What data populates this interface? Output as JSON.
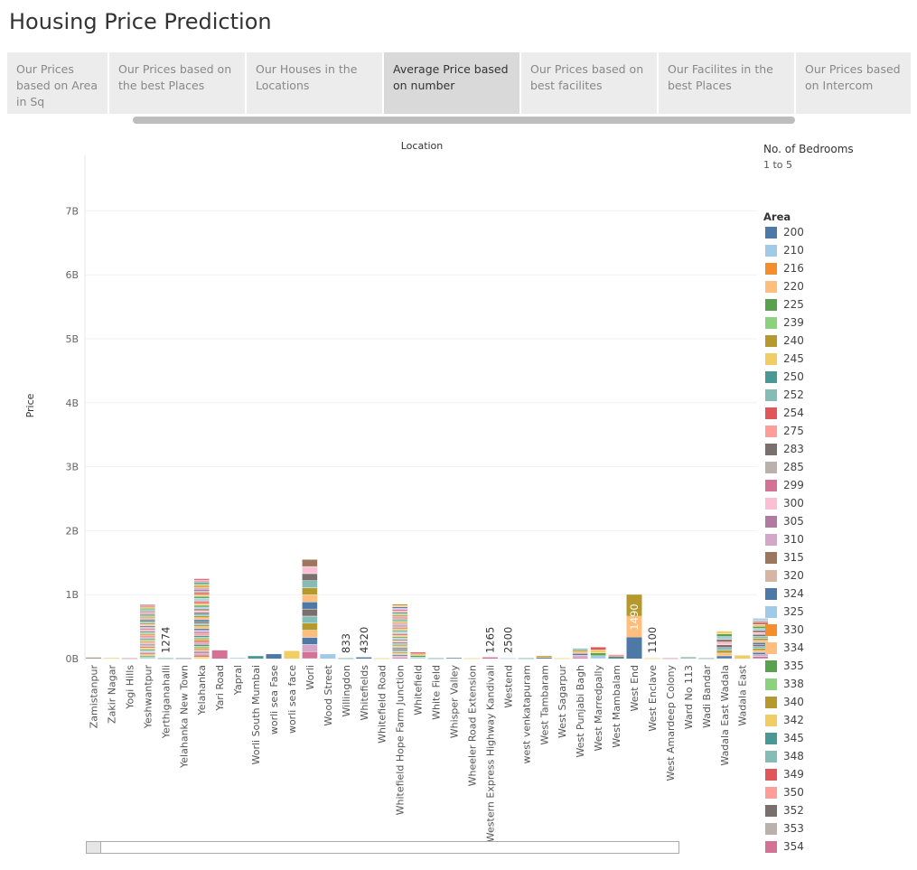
{
  "title": "Housing Price Prediction",
  "tabs": [
    {
      "label": "Our Prices based on Area in Sq",
      "active": false
    },
    {
      "label": "Our Prices based on the best Places",
      "active": false
    },
    {
      "label": "Our Houses in the Locations",
      "active": false
    },
    {
      "label": "Average Price based on number",
      "active": true
    },
    {
      "label": "Our Prices based on best facilites",
      "active": false
    },
    {
      "label": "Our Facilites in the best Places",
      "active": false
    },
    {
      "label": "Our Prices based on Intercom",
      "active": false
    }
  ],
  "legend": {
    "filter_title": "No. of Bedrooms",
    "filter_value": "1 to 5",
    "area_title": "Area",
    "items": [
      {
        "label": "200",
        "color": "#4e79a7"
      },
      {
        "label": "210",
        "color": "#a0cbe8"
      },
      {
        "label": "216",
        "color": "#f28e2b"
      },
      {
        "label": "220",
        "color": "#ffbe7d"
      },
      {
        "label": "225",
        "color": "#59a14f"
      },
      {
        "label": "239",
        "color": "#8cd17d"
      },
      {
        "label": "240",
        "color": "#b6992d"
      },
      {
        "label": "245",
        "color": "#f1ce63"
      },
      {
        "label": "250",
        "color": "#499894"
      },
      {
        "label": "252",
        "color": "#86bcb6"
      },
      {
        "label": "254",
        "color": "#e15759"
      },
      {
        "label": "275",
        "color": "#ff9d9a"
      },
      {
        "label": "283",
        "color": "#79706e"
      },
      {
        "label": "285",
        "color": "#bab0ac"
      },
      {
        "label": "299",
        "color": "#d37295"
      },
      {
        "label": "300",
        "color": "#fabfd2"
      },
      {
        "label": "305",
        "color": "#b07aa1"
      },
      {
        "label": "310",
        "color": "#d4a6c8"
      },
      {
        "label": "315",
        "color": "#9d7660"
      },
      {
        "label": "320",
        "color": "#d7b5a6"
      },
      {
        "label": "324",
        "color": "#4e79a7"
      },
      {
        "label": "325",
        "color": "#a0cbe8"
      },
      {
        "label": "330",
        "color": "#f28e2b"
      },
      {
        "label": "334",
        "color": "#ffbe7d"
      },
      {
        "label": "335",
        "color": "#59a14f"
      },
      {
        "label": "338",
        "color": "#8cd17d"
      },
      {
        "label": "340",
        "color": "#b6992d"
      },
      {
        "label": "342",
        "color": "#f1ce63"
      },
      {
        "label": "345",
        "color": "#499894"
      },
      {
        "label": "348",
        "color": "#86bcb6"
      },
      {
        "label": "349",
        "color": "#e15759"
      },
      {
        "label": "350",
        "color": "#ff9d9a"
      },
      {
        "label": "352",
        "color": "#79706e"
      },
      {
        "label": "353",
        "color": "#bab0ac"
      },
      {
        "label": "354",
        "color": "#d37295"
      }
    ]
  },
  "chart_data": {
    "type": "bar",
    "stacked": true,
    "title": "Location",
    "xlabel": "",
    "ylabel": "Price",
    "ylim": [
      -0.1,
      7.7
    ],
    "yticks": [
      0,
      1,
      2,
      3,
      4,
      5,
      6,
      7
    ],
    "ytick_labels": [
      "0B",
      "1B",
      "2B",
      "3B",
      "4B",
      "5B",
      "6B",
      "7B"
    ],
    "unit": "B",
    "categories": [
      {
        "name": "Zamistanpur",
        "total": 0.02,
        "stack": 2
      },
      {
        "name": "Zakir Nagar",
        "total": 0.01,
        "stack": 1
      },
      {
        "name": "Yogi Hills",
        "total": 0.005,
        "stack": 1
      },
      {
        "name": "Yeshwantpur",
        "total": 0.85,
        "stack": 40
      },
      {
        "name": "Yerthiganahalli",
        "total": 0.005,
        "stack": 1,
        "label": "1274"
      },
      {
        "name": "Yelahanka New Town",
        "total": 0.005,
        "stack": 1
      },
      {
        "name": "Yelahanka",
        "total": 1.25,
        "stack": 45
      },
      {
        "name": "Yari Road",
        "total": 0.13,
        "stack": 1
      },
      {
        "name": "Yapral",
        "total": 0.01,
        "stack": 1
      },
      {
        "name": "Worli South Mumbai",
        "total": 0.04,
        "stack": 1
      },
      {
        "name": "worli sea Fase",
        "total": 0.07,
        "stack": 1
      },
      {
        "name": "worli sea face",
        "total": 0.12,
        "stack": 1
      },
      {
        "name": "Worli",
        "total": 1.55,
        "stack": 14
      },
      {
        "name": "Wood Street",
        "total": 0.07,
        "stack": 1
      },
      {
        "name": "Willingdon",
        "total": 0.005,
        "stack": 1,
        "label": "833"
      },
      {
        "name": "Whitefields",
        "total": 0.02,
        "stack": 1,
        "label": "4320"
      },
      {
        "name": "Whitefield Road",
        "total": 0.005,
        "stack": 1
      },
      {
        "name": "Whitefield Hope Farm Junction",
        "total": 0.85,
        "stack": 40
      },
      {
        "name": "Whitefield",
        "total": 0.1,
        "stack": 4
      },
      {
        "name": "White Field",
        "total": 0.005,
        "stack": 1
      },
      {
        "name": "Whisper Valley",
        "total": 0.01,
        "stack": 1
      },
      {
        "name": "Wheeler Road Extension",
        "total": 0.005,
        "stack": 1
      },
      {
        "name": "Western Express Highway Kandivali",
        "total": 0.02,
        "stack": 1,
        "label": "1265"
      },
      {
        "name": "Westend",
        "total": 0.005,
        "stack": 1,
        "label": "2500"
      },
      {
        "name": "west venkatapuram",
        "total": 0.005,
        "stack": 1
      },
      {
        "name": "West Tambaram",
        "total": 0.04,
        "stack": 3
      },
      {
        "name": "West Sagarpur",
        "total": 0.005,
        "stack": 1
      },
      {
        "name": "West Punjabi Bagh",
        "total": 0.16,
        "stack": 6
      },
      {
        "name": "West Marredpally",
        "total": 0.18,
        "stack": 4
      },
      {
        "name": "West Mambalam",
        "total": 0.06,
        "stack": 2
      },
      {
        "name": "West End",
        "total": 1.0,
        "stack": 3,
        "label": "1490"
      },
      {
        "name": "West Enclave",
        "total": 0.005,
        "stack": 1,
        "label": "1100"
      },
      {
        "name": "West Amardeep Colony",
        "total": 0.005,
        "stack": 1
      },
      {
        "name": "Ward No 113",
        "total": 0.02,
        "stack": 2
      },
      {
        "name": "Wadi Bandar",
        "total": 0.005,
        "stack": 1
      },
      {
        "name": "Wadala East Wadala",
        "total": 0.43,
        "stack": 10
      },
      {
        "name": "Wadala East",
        "total": 0.05,
        "stack": 1
      },
      {
        "name": "",
        "total": 0.63,
        "stack": 20
      }
    ]
  }
}
